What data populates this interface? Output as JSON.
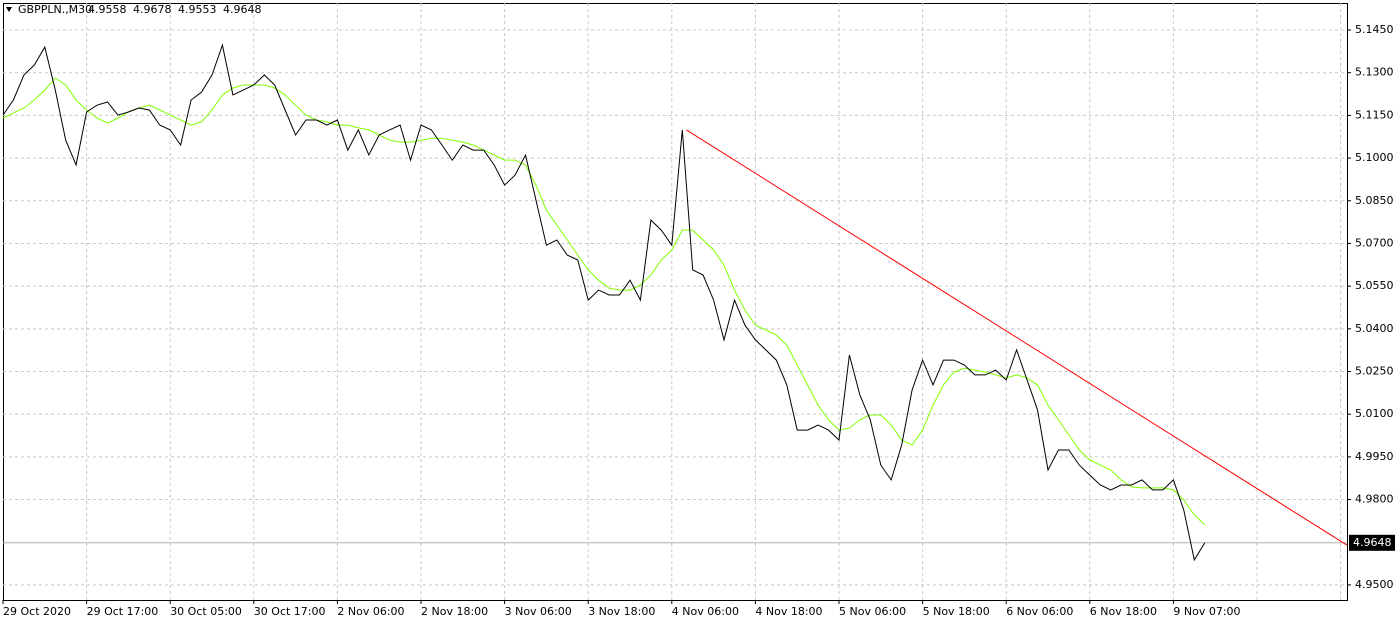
{
  "chart_data": {
    "type": "line",
    "symbol": "GBPPLN.,M30",
    "ohlc": [
      4.9558,
      4.9678,
      4.9553,
      4.9648
    ],
    "categories": [
      "29 Oct 2020",
      null,
      null,
      null,
      null,
      null,
      null,
      null,
      "29 Oct 17:00",
      null,
      null,
      null,
      null,
      null,
      null,
      null,
      "30 Oct 05:00",
      null,
      null,
      null,
      null,
      null,
      null,
      null,
      "30 Oct 17:00",
      null,
      null,
      null,
      null,
      null,
      null,
      null,
      "2 Nov 06:00",
      null,
      null,
      null,
      null,
      null,
      null,
      null,
      "2 Nov 18:00",
      null,
      null,
      null,
      null,
      null,
      null,
      null,
      "3 Nov 06:00",
      null,
      null,
      null,
      null,
      null,
      null,
      null,
      "3 Nov 18:00",
      null,
      null,
      null,
      null,
      null,
      null,
      null,
      "4 Nov 06:00",
      null,
      null,
      null,
      null,
      null,
      null,
      null,
      "4 Nov 18:00",
      null,
      null,
      null,
      null,
      null,
      null,
      null,
      "5 Nov 06:00",
      null,
      null,
      null,
      null,
      null,
      null,
      null,
      "5 Nov 18:00",
      null,
      null,
      null,
      null,
      null,
      null,
      null,
      "6 Nov 06:00",
      null,
      null,
      null,
      null,
      null,
      null,
      null,
      "6 Nov 18:00",
      null,
      null,
      null,
      null,
      null,
      null,
      null,
      "9 Nov 07:00",
      null,
      null,
      null
    ],
    "series": [
      {
        "color": "#000000",
        "values": [
          5.1151,
          5.1204,
          5.1292,
          5.1327,
          5.139,
          5.1239,
          5.1063,
          5.0976,
          5.1162,
          5.1186,
          5.1197,
          5.1151,
          5.1162,
          5.1176,
          5.1169,
          5.1116,
          5.1099,
          5.1046,
          5.1204,
          5.1232,
          5.1292,
          5.1397,
          5.1222,
          5.1239,
          5.1257,
          5.1292,
          5.1257,
          5.1169,
          5.1081,
          5.1134,
          5.1134,
          5.1116,
          5.1134,
          5.1028,
          5.1099,
          5.1011,
          5.1081,
          5.1099,
          5.1116,
          5.0993,
          5.1116,
          5.1099,
          5.1046,
          5.0993,
          5.1046,
          5.1028,
          5.1028,
          5.0976,
          5.0905,
          5.094,
          5.1011,
          5.0853,
          5.0694,
          5.0712,
          5.0659,
          5.0642,
          5.0501,
          5.0536,
          5.0519,
          5.0519,
          5.0571,
          5.0501,
          5.0782,
          5.0747,
          5.0694,
          5.1099,
          5.0607,
          5.0589,
          5.0501,
          5.0361,
          5.0501,
          5.0413,
          5.0361,
          5.0326,
          5.029,
          5.0203,
          5.0044,
          5.0044,
          5.0062,
          5.0044,
          5.0009,
          5.0308,
          5.0167,
          5.008,
          4.9921,
          4.9869,
          4.9992,
          5.0185,
          5.029,
          5.0203,
          5.029,
          5.029,
          5.0273,
          5.0238,
          5.0238,
          5.0255,
          5.022,
          5.0326,
          5.022,
          5.0115,
          4.9904,
          4.9974,
          4.9974,
          4.9921,
          4.9886,
          4.9851,
          4.9834,
          4.9851,
          4.9851,
          4.9869,
          4.9834,
          4.9834,
          4.9869,
          4.9763,
          4.9588,
          4.9648
        ]
      },
      {
        "color": "#7fff00",
        "values": [
          5.1141,
          5.1158,
          5.1176,
          5.1204,
          5.1239,
          5.1281,
          5.1257,
          5.1204,
          5.1169,
          5.1141,
          5.1123,
          5.1141,
          5.1162,
          5.1176,
          5.1186,
          5.1169,
          5.1151,
          5.1134,
          5.1116,
          5.1127,
          5.1169,
          5.1222,
          5.1246,
          5.1257,
          5.1257,
          5.1257,
          5.1246,
          5.1222,
          5.1186,
          5.1151,
          5.1134,
          5.1127,
          5.1116,
          5.1116,
          5.1106,
          5.1099,
          5.1081,
          5.1063,
          5.1056,
          5.1056,
          5.1063,
          5.107,
          5.107,
          5.1063,
          5.1056,
          5.1046,
          5.1028,
          5.1011,
          5.0993,
          5.0993,
          5.0976,
          5.0905,
          5.0817,
          5.0765,
          5.0712,
          5.0659,
          5.0607,
          5.0571,
          5.0543,
          5.0536,
          5.0536,
          5.0554,
          5.0589,
          5.0642,
          5.0677,
          5.0747,
          5.0747,
          5.0712,
          5.0677,
          5.0624,
          5.0536,
          5.0466,
          5.0413,
          5.0396,
          5.0378,
          5.0343,
          5.0273,
          5.0203,
          5.0132,
          5.008,
          5.0044,
          5.0051,
          5.008,
          5.0097,
          5.0097,
          5.0062,
          5.0009,
          4.9992,
          5.0044,
          5.0132,
          5.0203,
          5.0248,
          5.0262,
          5.0255,
          5.0248,
          5.0238,
          5.0227,
          5.0238,
          5.0227,
          5.0203,
          5.0132,
          5.008,
          5.0027,
          4.9974,
          4.9939,
          4.9921,
          4.9904,
          4.9869,
          4.9844,
          4.9841,
          4.9841,
          4.9841,
          4.9834,
          4.9798,
          4.9746,
          4.9711
        ]
      }
    ],
    "trendline": {
      "color": "#ff0000",
      "x": [
        65.4,
        128.6
      ],
      "values": [
        5.1099,
        4.964
      ]
    },
    "last_price": 4.9648,
    "ylim": [
      4.9447,
      5.1545
    ],
    "yticks": [
      {
        "value": 5.145,
        "label": "5.1450"
      },
      {
        "value": 5.13,
        "label": "5.1300"
      },
      {
        "value": 5.115,
        "label": "5.1150"
      },
      {
        "value": 5.1,
        "label": "5.1000"
      },
      {
        "value": 5.085,
        "label": "5.0850"
      },
      {
        "value": 5.07,
        "label": "5.0700"
      },
      {
        "value": 5.055,
        "label": "5.0550"
      },
      {
        "value": 5.04,
        "label": "5.0400"
      },
      {
        "value": 5.025,
        "label": "5.0250"
      },
      {
        "value": 5.01,
        "label": "5.0100"
      },
      {
        "value": 4.995,
        "label": "4.9950"
      },
      {
        "value": 4.98,
        "label": "4.9800"
      },
      {
        "value": 4.95,
        "label": "4.9500"
      }
    ],
    "grid": true
  }
}
